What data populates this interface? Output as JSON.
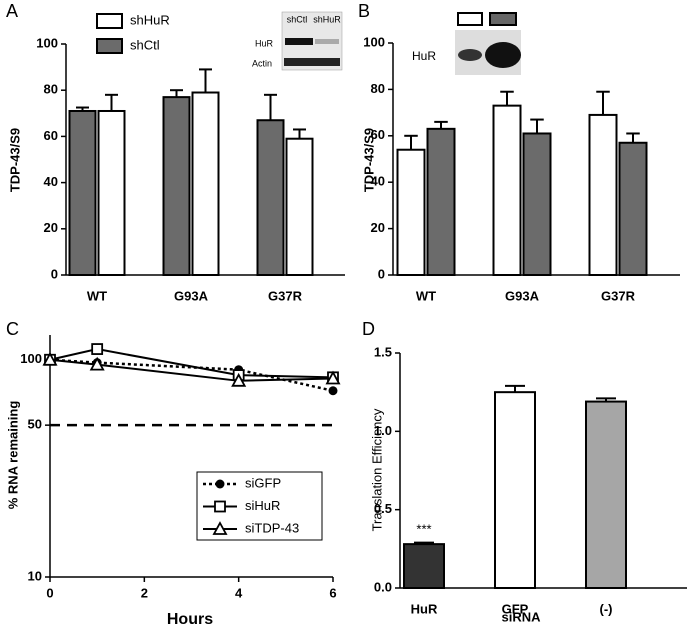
{
  "chart_data": [
    {
      "type": "bar",
      "panel_label": "A",
      "ylabel": "TDP-43/S9",
      "categories": [
        "WT",
        "G93A",
        "G37R"
      ],
      "series": [
        {
          "name": "shCtl",
          "color": "#6b6b6b",
          "values": [
            71,
            77,
            67
          ],
          "errors": [
            1.5,
            3,
            11
          ]
        },
        {
          "name": "shHuR",
          "color": "#ffffff",
          "values": [
            71,
            79,
            59
          ],
          "errors": [
            7,
            10,
            4
          ]
        }
      ],
      "ylim": [
        0,
        100
      ],
      "yticks": [
        0,
        20,
        40,
        60,
        80,
        100
      ],
      "legend": "upper left",
      "inset_labels": [
        "shCtl",
        "shHuR",
        "HuR",
        "Actin"
      ]
    },
    {
      "type": "bar",
      "panel_label": "B",
      "ylabel": "TDP-43/S9",
      "categories": [
        "WT",
        "G93A",
        "G37R"
      ],
      "series": [
        {
          "color": "#ffffff",
          "values": [
            54,
            73,
            69
          ],
          "errors": [
            6,
            6,
            10
          ]
        },
        {
          "color": "#6b6b6b",
          "values": [
            63,
            61,
            57
          ],
          "errors": [
            3,
            6,
            4
          ]
        }
      ],
      "ylim": [
        0,
        100
      ],
      "yticks": [
        0,
        20,
        40,
        60,
        80,
        100
      ],
      "inset_labels": [
        "HuR"
      ]
    },
    {
      "type": "line",
      "panel_label": "C",
      "xlabel": "Hours",
      "ylabel": "% RNA remaining",
      "x": [
        0,
        1,
        4,
        6
      ],
      "series": [
        {
          "name": "siGFP",
          "color": "#000000",
          "marker": "circle",
          "linestyle": "dotted",
          "values": [
            100,
            97,
            90,
            72
          ]
        },
        {
          "name": "siHuR",
          "color": "#000000",
          "marker": "square",
          "linestyle": "solid",
          "values": [
            100,
            112,
            85,
            83
          ]
        },
        {
          "name": "siTDP-43",
          "color": "#000000",
          "marker": "triangle",
          "linestyle": "solid",
          "values": [
            100,
            95,
            80,
            82
          ]
        }
      ],
      "xlim": [
        0,
        6
      ],
      "xticks": [
        0,
        2,
        4,
        6
      ],
      "ylim": [
        10,
        130
      ],
      "yticks": [
        10,
        50,
        100
      ],
      "log_scale": true,
      "reference_line": 50,
      "legend": "lower right"
    },
    {
      "type": "bar",
      "panel_label": "D",
      "xlabel": "siRNA",
      "ylabel": "Translation Efficiency",
      "categories": [
        "HuR",
        "GFP",
        "(-)"
      ],
      "values": [
        0.28,
        1.25,
        1.19
      ],
      "errors": [
        0.01,
        0.04,
        0.02
      ],
      "colors": [
        "#333333",
        "#ffffff",
        "#a6a6a6"
      ],
      "ylim": [
        0,
        1.5
      ],
      "yticks": [
        {
          "value": 0,
          "label": "0.0"
        },
        {
          "value": 0.5,
          "label": "0.5"
        },
        {
          "value": 1,
          "label": "1.0"
        },
        {
          "value": 1.5,
          "label": "1.5"
        }
      ],
      "annotation": "***"
    }
  ]
}
